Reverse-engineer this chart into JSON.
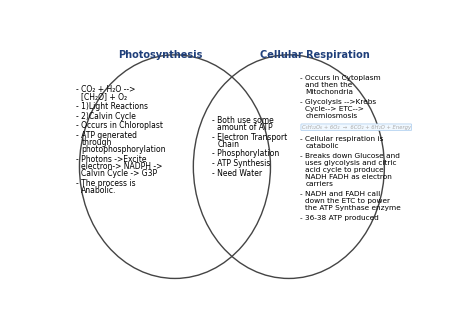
{
  "title_left": "Photosynthesis",
  "title_right": "Cellular Respiration",
  "title_color": "#1f3f7a",
  "left_items": [
    "CO₂ + H₂O -->\n [CH₂O] + O₂",
    "1)Light Reactions",
    "2)Calvin Cycle",
    "Occurs in Chloroplast",
    "ATP generated\n through\n photophosphorylation",
    "Photons ->Excite\n electron-> NADPH ->\n Calvin Cycle -> G3P",
    "The process is\n Anabolic."
  ],
  "center_items": [
    "Both use some\namount of ATP",
    "Electron Transport\nChain",
    "Phosphorylation",
    "ATP Synthesis",
    "Need Water"
  ],
  "right_items_top": [
    "Occurs in Cytoplasm\nand then the\nMitochondria",
    "Glycolysis -->Krebs\nCycle--> ETC-->\nchemiosmosis"
  ],
  "right_items_bottom": [
    "Cellular respiration is\ncatabolic",
    "Breaks down Glucose and\nuses glycolysis and citric\nacid cycle to produce\nNADH FADH as electron\ncarriers",
    "NADH and FADH call\ndown the ETC to power\nthe ATP Synthase enzyme",
    "36-38 ATP produced"
  ],
  "bg_color": "#ffffff",
  "ellipse_edge_color": "#444444",
  "text_color": "#000000",
  "bullet": "- "
}
